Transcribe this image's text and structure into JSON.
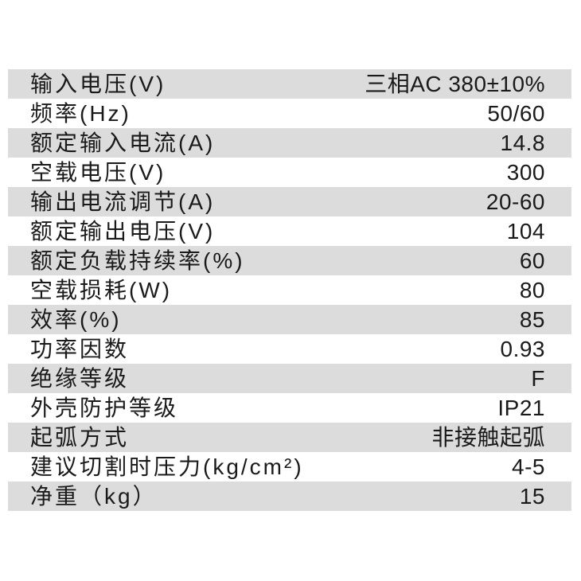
{
  "page": {
    "background_color": "#ffffff"
  },
  "table": {
    "row_alt_background": "#dcdcdc",
    "text_color": "#1a1a1a",
    "rows": [
      {
        "label": "输入电压(V)",
        "value": "三相AC 380±10%"
      },
      {
        "label": "频率(Hz)",
        "value": "50/60"
      },
      {
        "label": "额定输入电流(A)",
        "value": "14.8"
      },
      {
        "label": "空载电压(V)",
        "value": "300"
      },
      {
        "label": "输出电流调节(A)",
        "value": "20-60"
      },
      {
        "label": "额定输出电压(V)",
        "value": "104"
      },
      {
        "label": "额定负载持续率(%)",
        "value": "60"
      },
      {
        "label": "空载损耗(W)",
        "value": "80"
      },
      {
        "label": "效率(%)",
        "value": "85"
      },
      {
        "label": "功率因数",
        "value": "0.93"
      },
      {
        "label": "绝缘等级",
        "value": "F"
      },
      {
        "label": "外壳防护等级",
        "value": "IP21"
      },
      {
        "label": "起弧方式",
        "value": "非接触起弧"
      },
      {
        "label": "建议切割时压力(kg/cm²)",
        "value": "4-5"
      },
      {
        "label": "净重（kg）",
        "value": "15"
      }
    ]
  }
}
